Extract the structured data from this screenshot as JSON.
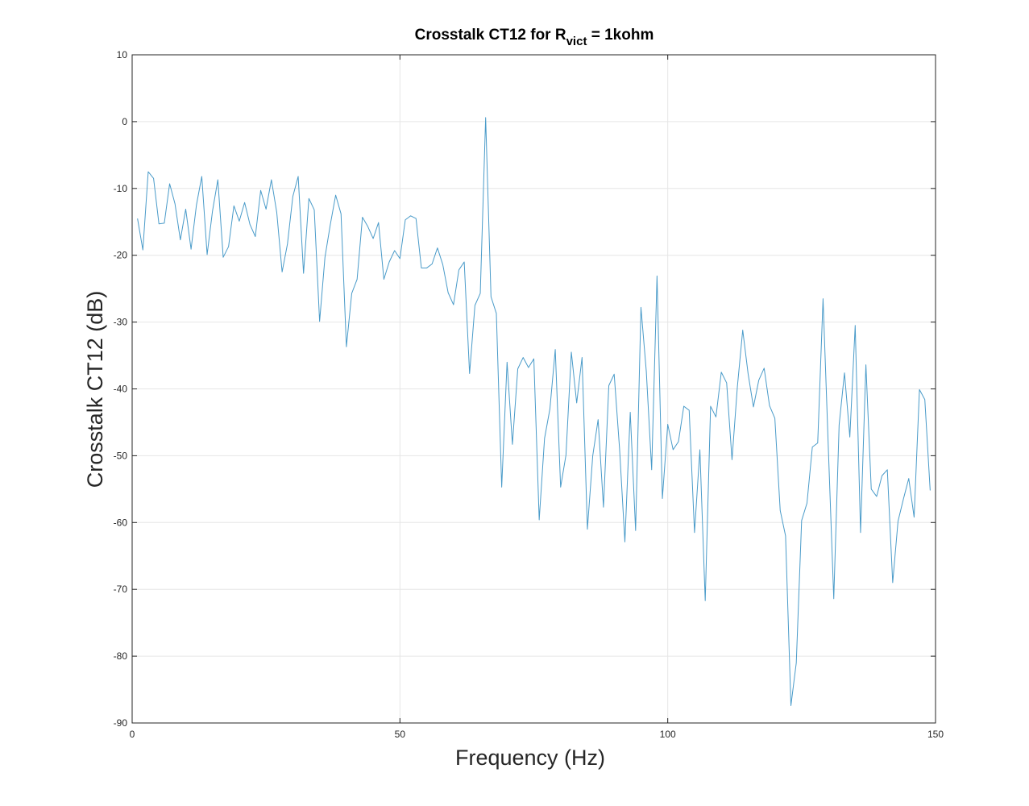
{
  "chart_data": {
    "type": "line",
    "title": "Crosstalk CT12 for R",
    "title_subscript": "vict",
    "title_suffix": " = 1kohm",
    "xlabel": "Frequency (Hz)",
    "ylabel": "Crosstalk CT12 (dB)",
    "xlim": [
      0,
      150
    ],
    "ylim": [
      -90,
      10
    ],
    "xticks": [
      0,
      50,
      100,
      150
    ],
    "yticks": [
      10,
      0,
      -10,
      -20,
      -30,
      -40,
      -50,
      -60,
      -70,
      -80,
      -90
    ],
    "grid": true,
    "line_color": "#4a9bc9",
    "series": [
      {
        "x": [
          1,
          2,
          3,
          4,
          5,
          6,
          7,
          8,
          9,
          10,
          11,
          12,
          13,
          14,
          15,
          16,
          17,
          18,
          19,
          20,
          21,
          22,
          23,
          24,
          25,
          26,
          27,
          28,
          29,
          30,
          31,
          32,
          33,
          34,
          35,
          36,
          37,
          38,
          39,
          40,
          41,
          42,
          43,
          44,
          45,
          46,
          47,
          48,
          49,
          50,
          51,
          52,
          53,
          54,
          55,
          56,
          57,
          58,
          59,
          60,
          61,
          62,
          63,
          64,
          65,
          66,
          67,
          68,
          69,
          70,
          71,
          72,
          73,
          74,
          75,
          76,
          77,
          78,
          79,
          80,
          81,
          82,
          83,
          84,
          85,
          86,
          87,
          88,
          89,
          90,
          91,
          92,
          93,
          94,
          95,
          96,
          97,
          98,
          99,
          100,
          101,
          102,
          103,
          104,
          105,
          106,
          107,
          108,
          109,
          110,
          111,
          112,
          113,
          114,
          115,
          116,
          117,
          118,
          119,
          120,
          121,
          122,
          123,
          124,
          125,
          126,
          127,
          128,
          129,
          130,
          131,
          132,
          133,
          134,
          135,
          136,
          137,
          138,
          139,
          140,
          141,
          142,
          143,
          144,
          145,
          146,
          147,
          148,
          149
        ],
        "y": [
          -14.5,
          -19.2,
          -7.5,
          -8.5,
          -15.3,
          -15.2,
          -9.3,
          -12.3,
          -17.7,
          -13.1,
          -19.1,
          -12.5,
          -8.2,
          -19.9,
          -13.4,
          -8.7,
          -20.3,
          -18.7,
          -12.6,
          -14.9,
          -12.1,
          -15.4,
          -17.2,
          -10.3,
          -13.1,
          -8.7,
          -13.6,
          -22.5,
          -18.3,
          -11.2,
          -8.2,
          -22.7,
          -11.5,
          -13.2,
          -29.9,
          -20.3,
          -15.4,
          -11.0,
          -13.8,
          -33.7,
          -25.7,
          -23.6,
          -14.3,
          -15.7,
          -17.5,
          -15.1,
          -23.6,
          -21.0,
          -19.3,
          -20.5,
          -14.7,
          -14.1,
          -14.5,
          -21.9,
          -21.9,
          -21.3,
          -18.9,
          -21.4,
          -25.6,
          -27.4,
          -22.2,
          -21.0,
          -37.7,
          -27.5,
          -25.7,
          0.6,
          -26.2,
          -28.7,
          -54.7,
          -36.0,
          -48.3,
          -37.0,
          -35.3,
          -36.8,
          -35.5,
          -59.6,
          -47.4,
          -43.0,
          -34.1,
          -54.7,
          -49.9,
          -34.5,
          -42.1,
          -35.3,
          -61.0,
          -50.0,
          -44.6,
          -57.7,
          -39.5,
          -37.8,
          -48.9,
          -62.9,
          -43.5,
          -61.2,
          -27.8,
          -37.4,
          -52.1,
          -23.1,
          -56.4,
          -45.3,
          -49.1,
          -47.9,
          -42.6,
          -43.2,
          -61.5,
          -49.1,
          -71.7,
          -42.6,
          -44.2,
          -37.5,
          -39.1,
          -50.6,
          -39.7,
          -31.2,
          -37.7,
          -42.7,
          -38.7,
          -36.9,
          -42.5,
          -44.4,
          -58.2,
          -62.0,
          -87.4,
          -81.0,
          -59.7,
          -57.1,
          -48.7,
          -48.1,
          -26.5,
          -49.2,
          -71.4,
          -45.4,
          -37.6,
          -47.2,
          -30.5,
          -61.5,
          -36.4,
          -55.0,
          -56.1,
          -53.0,
          -52.1,
          -69.0,
          -59.8,
          -56.5,
          -53.4,
          -59.2,
          -40.1,
          -41.6,
          -55.2
        ]
      }
    ]
  }
}
